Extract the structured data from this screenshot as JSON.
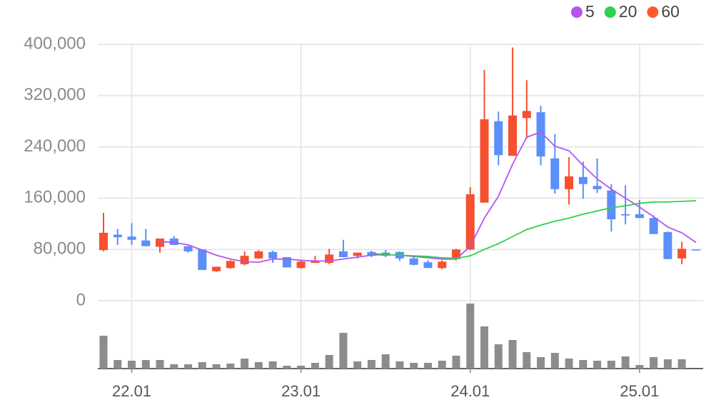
{
  "chart_data": {
    "type": "candlestick",
    "categories": [
      null,
      null,
      "22.01",
      null,
      null,
      null,
      null,
      null,
      null,
      null,
      null,
      null,
      null,
      null,
      "23.01",
      null,
      null,
      null,
      null,
      null,
      null,
      null,
      null,
      null,
      null,
      null,
      "24.01",
      null,
      null,
      null,
      null,
      null,
      null,
      null,
      null,
      null,
      null,
      null,
      "25.01",
      null,
      null,
      null,
      null
    ],
    "open": [
      79000,
      103000,
      100000,
      94000,
      84000,
      97000,
      85000,
      80000,
      46000,
      51000,
      57000,
      66000,
      76000,
      68000,
      51000,
      59000,
      59000,
      77000,
      70000,
      76000,
      75000,
      76000,
      66000,
      60000,
      51000,
      65000,
      80000,
      153000,
      280000,
      226000,
      285000,
      294000,
      222000,
      174000,
      193000,
      179000,
      172000,
      135000,
      135000,
      129000,
      107000,
      66000,
      80000
    ],
    "high": [
      137000,
      112000,
      121000,
      112000,
      97000,
      101000,
      85000,
      80000,
      53000,
      63000,
      77000,
      79000,
      78000,
      68000,
      63000,
      70000,
      81000,
      95000,
      75000,
      78000,
      79000,
      77000,
      68000,
      63000,
      63000,
      81000,
      177000,
      360000,
      295000,
      395000,
      344000,
      304000,
      260000,
      224000,
      217000,
      222000,
      182000,
      180000,
      157000,
      133000,
      108000,
      92000,
      80000
    ],
    "low": [
      77000,
      87000,
      87000,
      85000,
      75000,
      87000,
      75000,
      48000,
      45000,
      50000,
      55000,
      65000,
      59000,
      52000,
      50000,
      59000,
      57000,
      68000,
      66000,
      68000,
      68000,
      62000,
      55000,
      51000,
      49000,
      63000,
      79000,
      153000,
      211000,
      226000,
      253000,
      211000,
      167000,
      150000,
      159000,
      168000,
      108000,
      119000,
      129000,
      104000,
      65000,
      57000,
      79000
    ],
    "close": [
      106000,
      99000,
      95000,
      85000,
      97000,
      87000,
      77000,
      48000,
      53000,
      62000,
      70000,
      77000,
      66000,
      52000,
      61000,
      63000,
      72000,
      68000,
      75000,
      70000,
      70000,
      66000,
      56000,
      51000,
      61000,
      80000,
      166000,
      283000,
      227000,
      289000,
      296000,
      225000,
      174000,
      194000,
      182000,
      174000,
      127000,
      133000,
      129000,
      104000,
      65000,
      81000,
      79000
    ],
    "volume": [
      46,
      12,
      11,
      12,
      12,
      6,
      6,
      9,
      6,
      7,
      14,
      9,
      10,
      4,
      4,
      8,
      19,
      50,
      10,
      12,
      20,
      10,
      8,
      8,
      11,
      18,
      91,
      59,
      34,
      40,
      23,
      16,
      22,
      14,
      12,
      11,
      11,
      17,
      5,
      16,
      13,
      13,
      null
    ],
    "up_color": "#f5502f",
    "down_color": "#5b8ff9",
    "volume_color": "#8c8c8c",
    "series": [
      {
        "name": "5",
        "color": "#b455f0",
        "values": [
          null,
          null,
          null,
          null,
          92000,
          91000,
          87000,
          79000,
          71000,
          65000,
          61000,
          60000,
          65000,
          65000,
          63000,
          62000,
          62000,
          65000,
          68000,
          71000,
          72000,
          71000,
          69000,
          67000,
          65000,
          65000,
          85000,
          129000,
          163000,
          213000,
          255000,
          263000,
          241000,
          234000,
          211000,
          190000,
          174000,
          160000,
          146000,
          131000,
          115000,
          106000,
          91000
        ]
      },
      {
        "name": "20",
        "color": "#2dd14e",
        "values": [
          null,
          null,
          null,
          null,
          null,
          null,
          null,
          null,
          null,
          null,
          null,
          null,
          null,
          null,
          null,
          null,
          null,
          null,
          null,
          74000,
          72000,
          71000,
          70000,
          69000,
          67000,
          66000,
          70000,
          80000,
          89000,
          100000,
          111000,
          118000,
          124000,
          129000,
          135000,
          140000,
          145000,
          148000,
          152000,
          154000,
          154000,
          155000,
          156000
        ]
      },
      {
        "name": "60",
        "color": "#ff5a2a",
        "values": [
          null,
          null,
          null,
          null,
          null,
          null,
          null,
          null,
          null,
          null,
          null,
          null,
          null,
          null,
          null,
          null,
          null,
          null,
          null,
          null,
          null,
          null,
          null,
          null,
          null,
          null,
          null,
          null,
          null,
          null,
          null,
          null,
          null,
          null,
          null,
          null,
          null,
          null,
          null,
          null,
          null,
          null,
          null
        ]
      }
    ],
    "ylim": [
      0,
      400000
    ],
    "yticks": [
      0,
      {
        "value": 80000,
        "label": "80,000"
      },
      {
        "value": 160000,
        "label": "160,000"
      },
      {
        "value": 240000,
        "label": "240,000"
      },
      {
        "value": 320000,
        "label": "320,000"
      },
      {
        "value": 400000,
        "label": "400,000"
      }
    ],
    "grid": true,
    "legend": "top-right"
  }
}
